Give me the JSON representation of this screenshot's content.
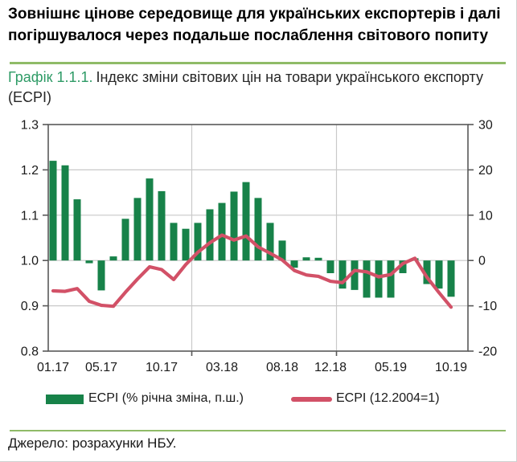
{
  "header": {
    "title": "Зовнішнє цінове середовище для українських експортерів і далі погіршувалося через подальше послаблення світового попиту"
  },
  "caption": {
    "prefix": "Графік 1.1.1.",
    "text": "Індекс  зміни світових цін на товари українського експорту (ECPI)"
  },
  "source": {
    "text": "Джерело: розрахунки НБУ."
  },
  "colors": {
    "bar": "#178249",
    "line": "#D25167",
    "separator": "#8FBB67",
    "grid": "#C9C9C9",
    "axis": "#595959",
    "text": "#1A1A1A",
    "caption_prefix": "#2E9B66"
  },
  "chart_data": {
    "type": "bar",
    "subtype": "combo bar+line, dual axis",
    "categories": [
      "01.17",
      "02.17",
      "03.17",
      "04.17",
      "05.17",
      "06.17",
      "07.17",
      "08.17",
      "09.17",
      "10.17",
      "11.17",
      "12.17",
      "01.18",
      "02.18",
      "03.18",
      "04.18",
      "05.18",
      "06.18",
      "07.18",
      "08.18",
      "09.18",
      "10.18",
      "11.18",
      "12.18",
      "01.19",
      "02.19",
      "03.19",
      "04.19",
      "05.19",
      "06.19",
      "07.19",
      "08.19",
      "09.19",
      "10.19"
    ],
    "x_tick_labels": [
      "01.17",
      "05.17",
      "10.17",
      "03.18",
      "08.18",
      "12.18",
      "05.19",
      "10.19"
    ],
    "x_tick_indices": [
      0,
      4,
      9,
      14,
      19,
      23,
      28,
      33
    ],
    "left_axis": {
      "ticks": [
        "1.3",
        "1.2",
        "1.1",
        "1.0",
        "0.9",
        "0.8"
      ],
      "range": [
        0.8,
        1.3
      ]
    },
    "right_axis": {
      "ticks": [
        "30",
        "20",
        "10",
        "0",
        "-10",
        "-20"
      ],
      "range": [
        -20,
        30
      ]
    },
    "gridlines": {
      "horizontal_left_values": [
        1.2,
        1.1,
        1.0,
        0.9
      ],
      "vertical_after_category_index": [
        11,
        23
      ]
    },
    "series": [
      {
        "name": "ECPI (% річна зміна, п.ш.)",
        "type": "bar",
        "axis": "right",
        "color": "#178249",
        "values": [
          22,
          21,
          13.5,
          -0.6,
          -6.6,
          0.9,
          9.2,
          13.8,
          18.1,
          15.3,
          8.3,
          7.0,
          8.3,
          11.3,
          12.7,
          15.2,
          17.3,
          13.8,
          8.3,
          4.4,
          -1.6,
          0.7,
          0.6,
          -2.8,
          -6.2,
          -6.5,
          -8.2,
          -8.2,
          -8.2,
          -2.8,
          0.5,
          -5.2,
          -6.2,
          -8.0
        ]
      },
      {
        "name": "ECPI (12.2004=1)",
        "type": "line",
        "axis": "left",
        "color": "#D25167",
        "values": [
          0.933,
          0.932,
          0.938,
          0.91,
          0.901,
          0.899,
          0.93,
          0.959,
          0.986,
          0.98,
          0.958,
          0.991,
          1.018,
          1.039,
          1.056,
          1.045,
          1.054,
          1.03,
          1.016,
          1.001,
          0.978,
          0.968,
          0.965,
          0.954,
          0.951,
          0.978,
          0.975,
          0.964,
          0.969,
          0.993,
          1.005,
          0.963,
          0.929,
          0.897
        ]
      }
    ]
  }
}
